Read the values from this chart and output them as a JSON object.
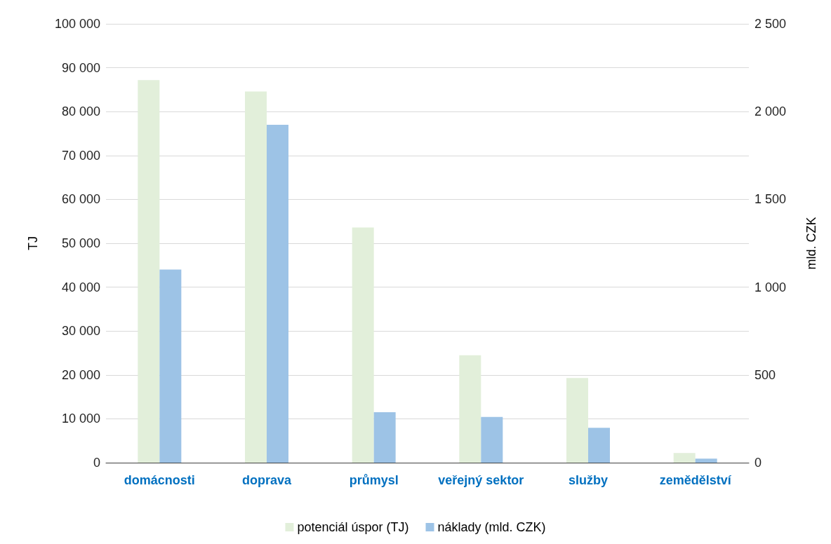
{
  "chart_data": {
    "type": "bar",
    "categories": [
      "domácnosti",
      "doprava",
      "průmysl",
      "veřejný sektor",
      "služby",
      "zemědělství"
    ],
    "series": [
      {
        "name": "potenciál úspor (TJ)",
        "color": "#e2efda",
        "values": [
          87200,
          84600,
          53600,
          24500,
          19300,
          2200
        ]
      },
      {
        "name": "náklady (mld. CZK)",
        "color": "#9dc3e6",
        "axis": "y2",
        "values": [
          1100,
          1925,
          288,
          261,
          199,
          23
        ]
      }
    ],
    "ylabel": "TJ",
    "y2label": "mld. CZK",
    "ylim": [
      0,
      100000
    ],
    "yticks": [
      0,
      {
        "value": 10000,
        "label": "10 000"
      },
      {
        "value": 20000,
        "label": "20 000"
      },
      {
        "value": 30000,
        "label": "30 000"
      },
      {
        "value": 40000,
        "label": "40 000"
      },
      {
        "value": 50000,
        "label": "50 000"
      },
      {
        "value": 60000,
        "label": "60 000"
      },
      {
        "value": 70000,
        "label": "70 000"
      },
      {
        "value": 80000,
        "label": "80 000"
      },
      {
        "value": 90000,
        "label": "90 000"
      },
      {
        "value": 100000,
        "label": "100 000"
      }
    ],
    "y2lim": [
      0,
      2500
    ],
    "y2ticks": [
      0,
      500,
      {
        "value": 1000,
        "label": "1 000"
      },
      {
        "value": 1500,
        "label": "1 500"
      },
      {
        "value": 2000,
        "label": "2 000"
      },
      {
        "value": 2500,
        "label": "2 500"
      }
    ],
    "grid": "y",
    "legend": "bottom"
  }
}
